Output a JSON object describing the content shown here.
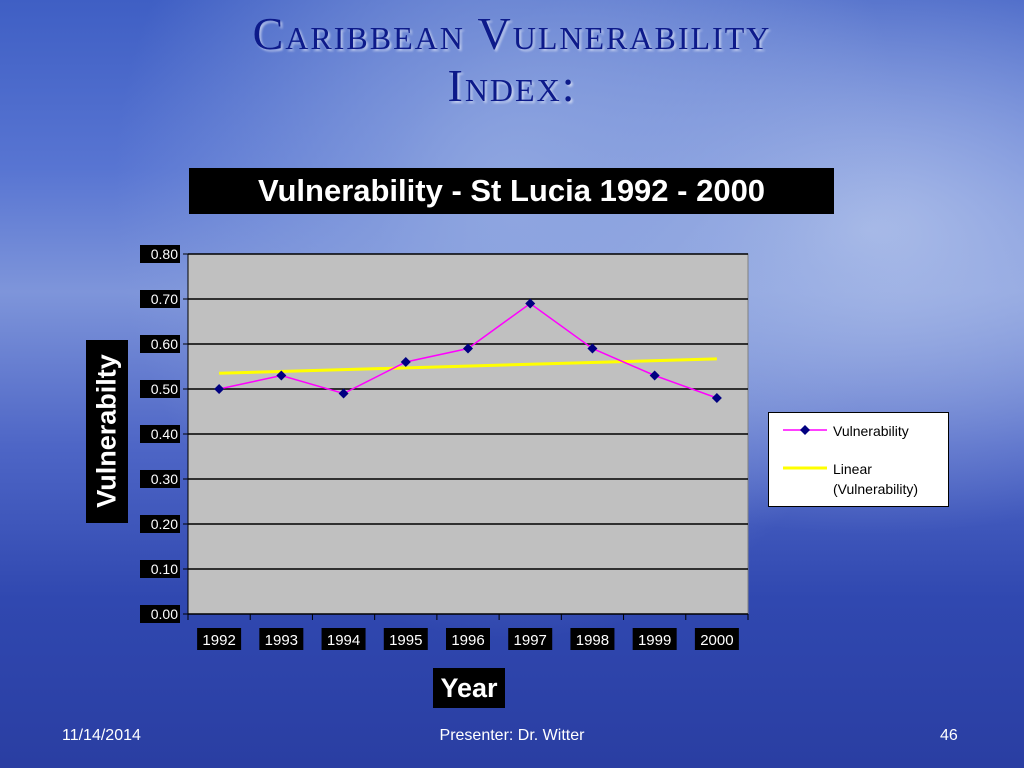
{
  "slide": {
    "title_line1": "Caribbean Vulnerability",
    "title_line2": "Index:",
    "footer_date": "11/14/2014",
    "footer_presenter": "Presenter: Dr. Witter",
    "footer_page": "46"
  },
  "chart_data": {
    "type": "line",
    "title": "Vulnerability - St Lucia 1992 - 2000",
    "xlabel": "Year",
    "ylabel": "Vulnerabilty",
    "categories": [
      "1992",
      "1993",
      "1994",
      "1995",
      "1996",
      "1997",
      "1998",
      "1999",
      "2000"
    ],
    "series": [
      {
        "name": "Vulnerability",
        "color": "#ff00ff",
        "marker": "diamond",
        "marker_color": "#000080",
        "values": [
          0.5,
          0.53,
          0.49,
          0.56,
          0.59,
          0.69,
          0.59,
          0.53,
          0.48
        ]
      },
      {
        "name": "Linear\n(Vulnerability)",
        "color": "#ffff00",
        "trend": "linear",
        "values": [
          0.535,
          0.539,
          0.543,
          0.547,
          0.551,
          0.555,
          0.559,
          0.563,
          0.567
        ]
      }
    ],
    "ylim": [
      0,
      0.8
    ],
    "yticks": [
      "0.00",
      "0.10",
      "0.20",
      "0.30",
      "0.40",
      "0.50",
      "0.60",
      "0.70",
      "0.80"
    ],
    "grid": true,
    "plot_background": "#c0c0c0",
    "legend_position": "right"
  }
}
